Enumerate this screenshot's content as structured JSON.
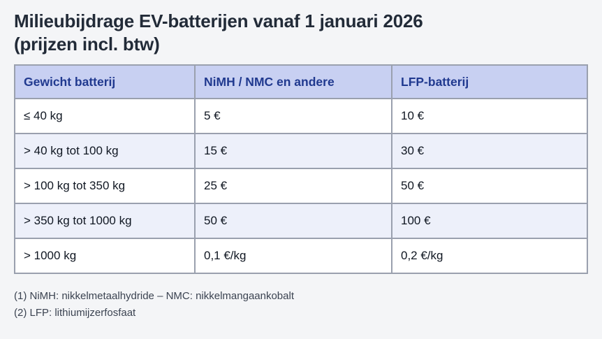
{
  "page": {
    "title_line1": "Milieubijdrage EV-batterijen vanaf 1 januari 2026",
    "title_line2": "(prijzen incl. btw)"
  },
  "table": {
    "headers": [
      "Gewicht batterij",
      "NiMH / NMC en andere",
      "LFP-batterij"
    ],
    "rows": [
      [
        "≤ 40 kg",
        "5 €",
        "10 €"
      ],
      [
        "> 40 kg tot 100 kg",
        "15 €",
        "30 €"
      ],
      [
        "> 100 kg tot 350 kg",
        "25 €",
        "50 €"
      ],
      [
        "> 350 kg tot 1000 kg",
        "50 €",
        "100 €"
      ],
      [
        "> 1000 kg",
        "0,1 €/kg",
        "0,2 €/kg"
      ]
    ]
  },
  "footnotes": [
    "(1) NiMH: nikkelmetaalhydride – NMC: nikkelmangaankobalt",
    "(2) LFP: lithiumijzerfosfaat"
  ],
  "colors": {
    "page_bg": "#f4f5f7",
    "header_bg": "#c8d0f2",
    "header_text": "#20398f",
    "row_alt_bg": "#edf0fa",
    "border": "#9aa0ae",
    "title_text": "#222b38",
    "cell_text": "#101722",
    "footnote_text": "#3b4351"
  }
}
